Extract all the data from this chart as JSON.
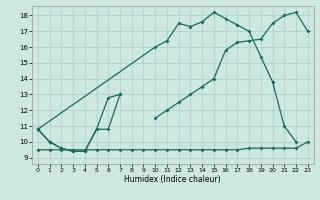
{
  "xlabel": "Humidex (Indice chaleur)",
  "bg_color": "#cce8e0",
  "grid_color": "#aacccc",
  "line_color": "#1a6b5a",
  "xlim": [
    -0.5,
    23.5
  ],
  "ylim": [
    8.6,
    18.6
  ],
  "xticks": [
    0,
    1,
    2,
    3,
    4,
    5,
    6,
    7,
    8,
    9,
    10,
    11,
    12,
    13,
    14,
    15,
    16,
    17,
    18,
    19,
    20,
    21,
    22,
    23
  ],
  "yticks": [
    9,
    10,
    11,
    12,
    13,
    14,
    15,
    16,
    17,
    18
  ],
  "line1_x": [
    0,
    1,
    2,
    3,
    4,
    5,
    6,
    7
  ],
  "line1_y": [
    10.8,
    10.0,
    9.6,
    9.4,
    9.4,
    10.8,
    10.8,
    13.0
  ],
  "line2_x": [
    0,
    1,
    2,
    3,
    4,
    5,
    6,
    7,
    8,
    9,
    10,
    11,
    12,
    13,
    14,
    15,
    16,
    17,
    18,
    19,
    20,
    21,
    22,
    23
  ],
  "line2_y": [
    9.5,
    9.5,
    9.5,
    9.5,
    9.5,
    9.5,
    9.5,
    9.5,
    9.5,
    9.5,
    9.5,
    9.5,
    9.5,
    9.5,
    9.5,
    9.5,
    9.5,
    9.5,
    9.6,
    9.6,
    9.6,
    9.6,
    9.6,
    10.0
  ],
  "line3a_x": [
    0,
    1,
    2,
    3,
    4,
    5,
    6,
    7
  ],
  "line3a_y": [
    10.8,
    10.0,
    9.6,
    9.4,
    9.4,
    10.8,
    12.8,
    13.0
  ],
  "line3b_x": [
    10,
    11,
    12,
    13,
    14,
    15,
    16,
    17,
    18,
    19,
    20,
    21,
    22,
    23
  ],
  "line3b_y": [
    11.5,
    12.0,
    12.5,
    13.0,
    13.5,
    14.0,
    15.8,
    16.3,
    16.4,
    16.5,
    17.5,
    18.0,
    18.2,
    17.0
  ],
  "line4_x": [
    0,
    10,
    11,
    12,
    13,
    14,
    15,
    16,
    17,
    18,
    19,
    20,
    21,
    22
  ],
  "line4_y": [
    10.8,
    16.0,
    16.4,
    17.5,
    17.3,
    17.6,
    18.2,
    17.8,
    17.4,
    17.0,
    15.4,
    13.8,
    11.0,
    10.0
  ]
}
